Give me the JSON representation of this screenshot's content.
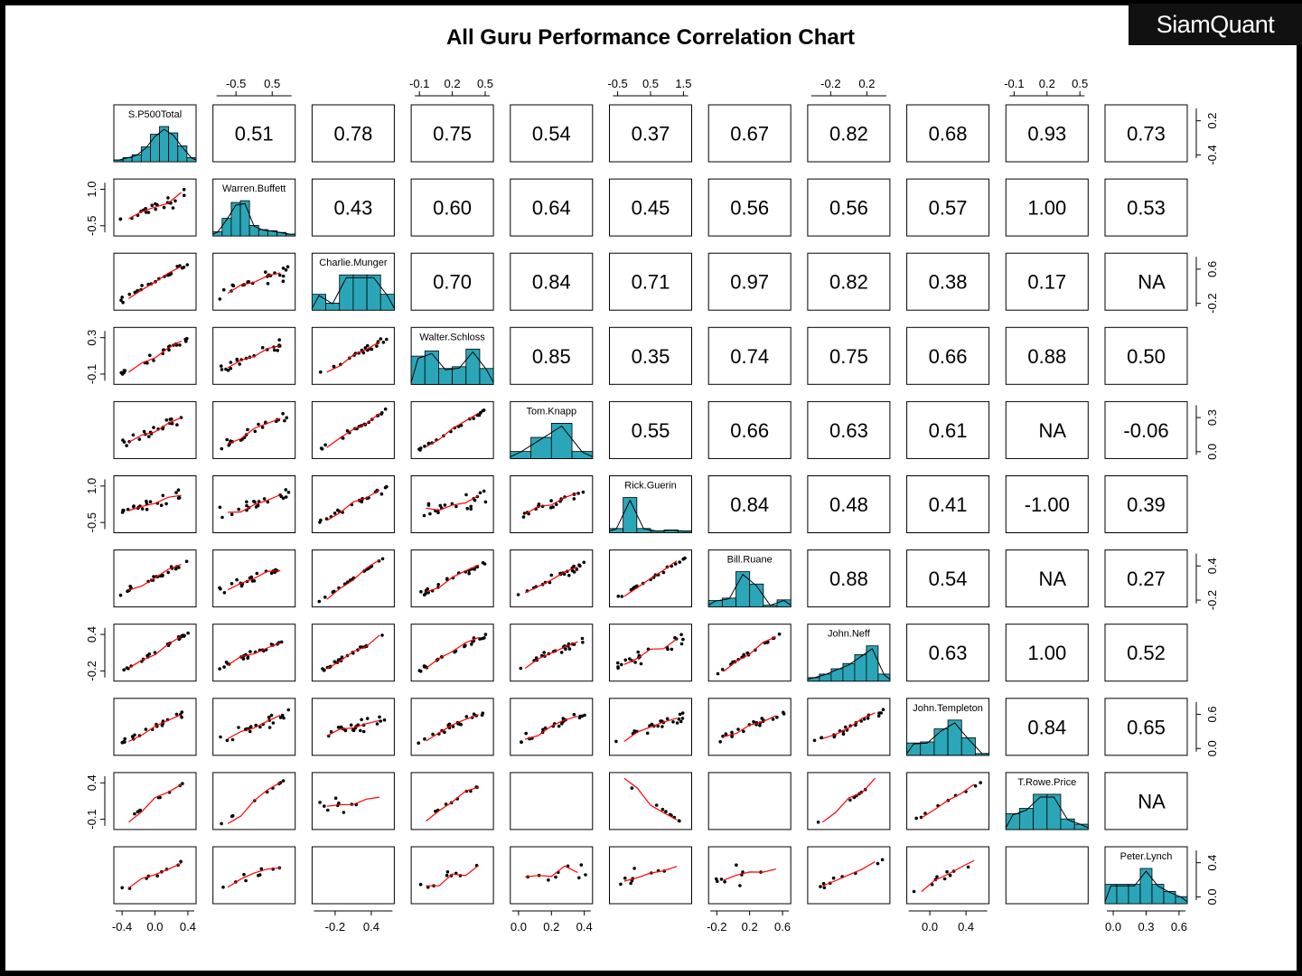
{
  "brand": "SiamQuant",
  "colors": {
    "hist_fill": "#2aa6b8",
    "smooth_line": "#ff0000",
    "panel_border": "#000000",
    "background": "#ffffff"
  },
  "chart_data": {
    "type": "scatter-matrix",
    "title": "All Guru Performance Correlation Chart",
    "variables": [
      "S.P500Total",
      "Warren.Buffett",
      "Charlie.Munger",
      "Walter.Schloss",
      "Tom.Knapp",
      "Rick.Guerin",
      "Bill.Ruane",
      "John.Neff",
      "John.Templeton",
      "T.Rowe.Price",
      "Peter.Lynch"
    ],
    "correlations": [
      [
        "",
        "0.51",
        "0.78",
        "0.75",
        "0.54",
        "0.37",
        "0.67",
        "0.82",
        "0.68",
        "0.93",
        "0.73"
      ],
      [
        "",
        "",
        "0.43",
        "0.60",
        "0.64",
        "0.45",
        "0.56",
        "0.56",
        "0.57",
        "1.00",
        "0.53"
      ],
      [
        "",
        "",
        "",
        "0.70",
        "0.84",
        "0.71",
        "0.97",
        "0.82",
        "0.38",
        "0.17",
        "NA"
      ],
      [
        "",
        "",
        "",
        "",
        "0.85",
        "0.35",
        "0.74",
        "0.75",
        "0.66",
        "0.88",
        "0.50"
      ],
      [
        "",
        "",
        "",
        "",
        "",
        "0.55",
        "0.66",
        "0.63",
        "0.61",
        "NA",
        "-0.06"
      ],
      [
        "",
        "",
        "",
        "",
        "",
        "",
        "0.84",
        "0.48",
        "0.41",
        "-1.00",
        "0.39"
      ],
      [
        "",
        "",
        "",
        "",
        "",
        "",
        "",
        "0.88",
        "0.54",
        "NA",
        "0.27"
      ],
      [
        "",
        "",
        "",
        "",
        "",
        "",
        "",
        "",
        "0.63",
        "1.00",
        "0.52"
      ],
      [
        "",
        "",
        "",
        "",
        "",
        "",
        "",
        "",
        "",
        "0.84",
        "0.65"
      ],
      [
        "",
        "",
        "",
        "",
        "",
        "",
        "",
        "",
        "",
        "",
        "NA"
      ],
      [
        "",
        "",
        "",
        "",
        "",
        "",
        "",
        "",
        "",
        "",
        ""
      ]
    ],
    "histograms": [
      [
        0.05,
        0.12,
        0.2,
        0.42,
        0.78,
        1.0,
        0.82,
        0.45,
        0.12
      ],
      [
        0.12,
        0.5,
        0.95,
        1.0,
        0.3,
        0.18,
        0.15,
        0.1,
        0.05
      ],
      [
        0.45,
        0.2,
        1.0,
        1.0,
        1.0,
        0.45
      ],
      [
        0.8,
        0.95,
        0.45,
        0.5,
        1.0,
        0.45
      ],
      [
        0.2,
        0.6,
        1.0,
        0.2
      ],
      [
        0.12,
        1.0,
        0.12,
        0.05,
        0.08,
        0.05
      ],
      [
        0.18,
        0.25,
        1.0,
        0.65,
        0.05,
        0.2
      ],
      [
        0.1,
        0.2,
        0.35,
        0.5,
        0.75,
        1.0,
        0.2
      ],
      [
        0.35,
        0.38,
        0.75,
        1.0,
        0.5,
        0.05
      ],
      [
        0.45,
        0.6,
        1.0,
        1.0,
        0.3,
        0.15
      ],
      [
        0.55,
        0.55,
        0.55,
        1.0,
        0.55,
        0.35,
        0.2
      ]
    ],
    "axes": {
      "top": [
        {
          "column": 1,
          "ticks": [
            "-0.5",
            "0.5"
          ]
        },
        {
          "column": 3,
          "ticks": [
            "-0.1",
            "0.2",
            "0.5"
          ]
        },
        {
          "column": 5,
          "ticks": [
            "-0.5",
            "0.5",
            "1.5"
          ]
        },
        {
          "column": 7,
          "ticks": [
            "-0.2",
            "0.2"
          ]
        },
        {
          "column": 9,
          "ticks": [
            "-0.1",
            "0.2",
            "0.5"
          ]
        }
      ],
      "bottom": [
        {
          "column": 0,
          "ticks": [
            "-0.4",
            "0.0",
            "0.4"
          ]
        },
        {
          "column": 2,
          "ticks": [
            "-0.2",
            "0.4"
          ]
        },
        {
          "column": 4,
          "ticks": [
            "0.0",
            "0.2",
            "0.4"
          ]
        },
        {
          "column": 6,
          "ticks": [
            "-0.2",
            "0.2",
            "0.6"
          ]
        },
        {
          "column": 8,
          "ticks": [
            "0.0",
            "0.4"
          ]
        },
        {
          "column": 10,
          "ticks": [
            "0.0",
            "0.3",
            "0.6"
          ]
        }
      ],
      "left": [
        {
          "row": 1,
          "ticks": [
            "-0.5",
            "1.0"
          ]
        },
        {
          "row": 3,
          "ticks": [
            "-0.1",
            "0.3"
          ]
        },
        {
          "row": 5,
          "ticks": [
            "-0.5",
            "1.0"
          ]
        },
        {
          "row": 7,
          "ticks": [
            "-0.2",
            "0.4"
          ]
        },
        {
          "row": 9,
          "ticks": [
            "-0.1",
            "0.4"
          ]
        }
      ],
      "right": [
        {
          "row": 0,
          "ticks": [
            "-0.4",
            "0.2"
          ]
        },
        {
          "row": 2,
          "ticks": [
            "-0.2",
            "0.6"
          ]
        },
        {
          "row": 4,
          "ticks": [
            "0.0",
            "0.3"
          ]
        },
        {
          "row": 6,
          "ticks": [
            "-0.2",
            "0.4"
          ]
        },
        {
          "row": 8,
          "ticks": [
            "0.0",
            "0.6"
          ]
        },
        {
          "row": 10,
          "ticks": [
            "0.0",
            "0.4"
          ]
        }
      ]
    }
  }
}
